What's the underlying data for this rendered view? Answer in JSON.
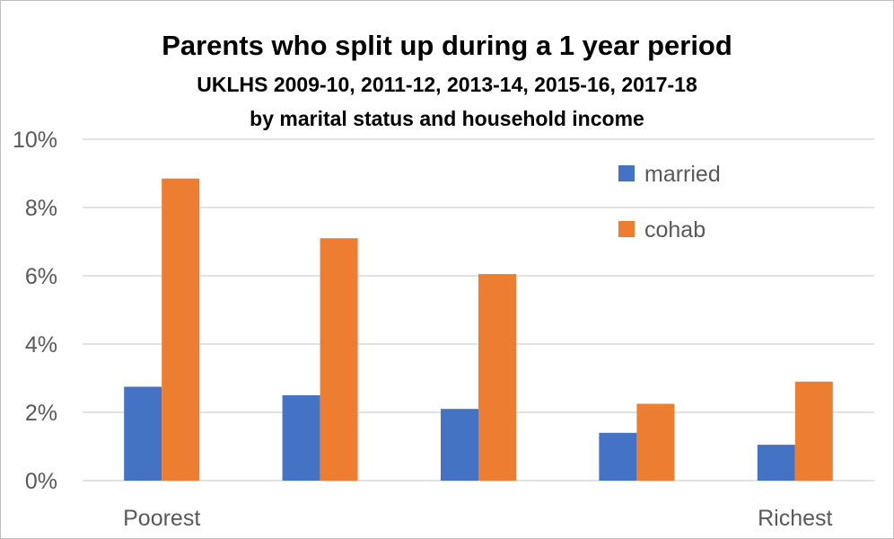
{
  "chart_data": {
    "type": "bar",
    "title": "Parents who split up during a 1 year period",
    "subtitle_lines": [
      "UKLHS 2009-10, 2011-12, 2013-14, 2015-16, 2017-18",
      "by marital status and household income"
    ],
    "categories": [
      "Poorest",
      "",
      "",
      "",
      "Richest"
    ],
    "series": [
      {
        "name": "married",
        "color": "#4472c4",
        "values": [
          2.75,
          2.5,
          2.1,
          1.4,
          1.05
        ]
      },
      {
        "name": "cohab",
        "color": "#ed7d31",
        "values": [
          8.85,
          7.1,
          6.05,
          2.25,
          2.9
        ]
      }
    ],
    "ylim": [
      0,
      10
    ],
    "yticks": [
      "0%",
      "2%",
      "4%",
      "6%",
      "8%",
      "10%"
    ],
    "grid": true,
    "legend_position": "top-right"
  }
}
